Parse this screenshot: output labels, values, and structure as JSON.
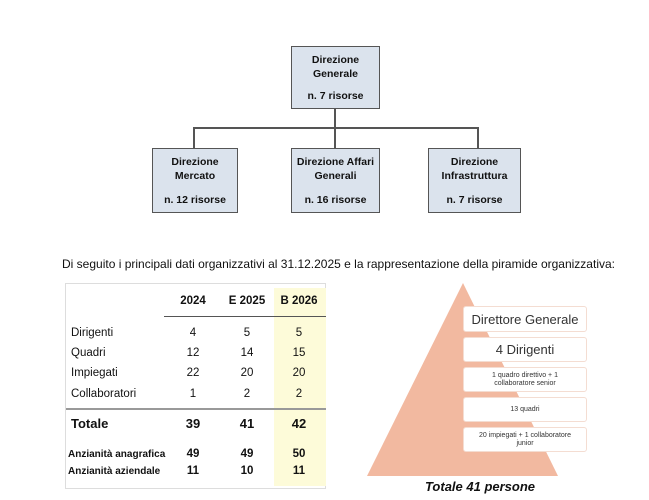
{
  "org_chart": {
    "top": {
      "title_line1": "Direzione",
      "title_line2": "Generale",
      "resources": "n. 7 risorse"
    },
    "children": [
      {
        "title_line1": "Direzione",
        "title_line2": "Mercato",
        "resources": "n. 12 risorse"
      },
      {
        "title_line1": "Direzione Affari",
        "title_line2": "Generali",
        "resources": "n. 16 risorse"
      },
      {
        "title_line1": "Direzione",
        "title_line2": "Infrastruttura",
        "resources": "n. 7 risorse"
      }
    ],
    "box_color": "#dbe3ed"
  },
  "intro_text": "Di seguito i principali dati organizzativi al 31.12.2025 e la rappresentazione della piramide organizzativa:",
  "table": {
    "columns": [
      "2024",
      "E 2025",
      "B 2026"
    ],
    "rows": [
      {
        "label": "Dirigenti",
        "values": [
          "4",
          "5",
          "5"
        ]
      },
      {
        "label": "Quadri",
        "values": [
          "12",
          "14",
          "15"
        ]
      },
      {
        "label": "Impiegati",
        "values": [
          "22",
          "20",
          "20"
        ]
      },
      {
        "label": "Collaboratori",
        "values": [
          "1",
          "2",
          "2"
        ]
      }
    ],
    "total": {
      "label": "Totale",
      "values": [
        "39",
        "41",
        "42"
      ]
    },
    "extra": [
      {
        "label": "Anzianità anagrafica",
        "values": [
          "49",
          "49",
          "50"
        ]
      },
      {
        "label": "Anzianità aziendale",
        "values": [
          "11",
          "10",
          "11"
        ]
      }
    ],
    "highlight_color": "#fdfbd9"
  },
  "pyramid": {
    "levels": [
      "Direttore Generale",
      "4 Dirigenti",
      "1 quadro direttivo + 1 collaboratore senior",
      "13 quadri",
      "20 impiegati + 1 collaboratore junior"
    ],
    "caption": "Totale 41 persone",
    "fill_color": "#f2b9a0"
  }
}
